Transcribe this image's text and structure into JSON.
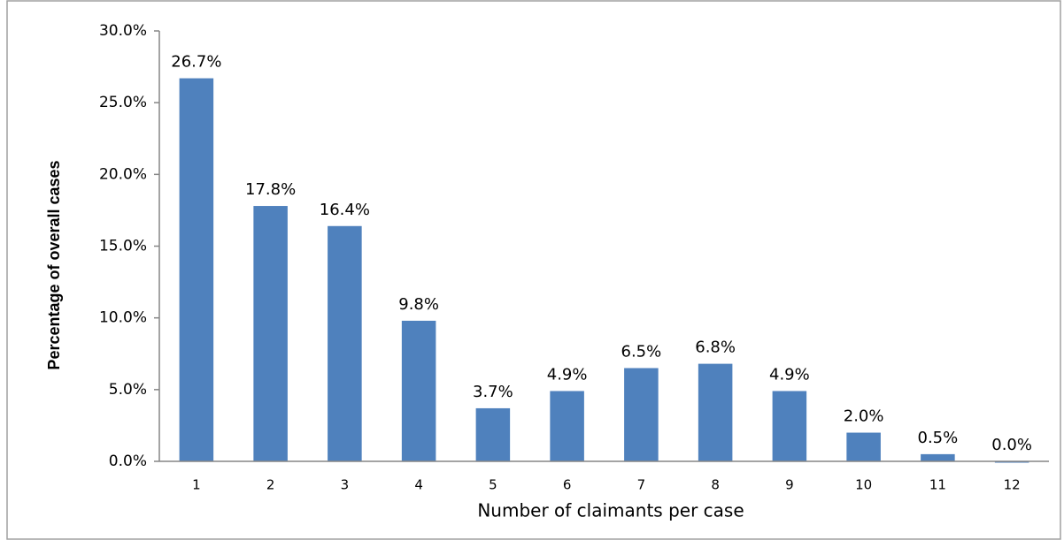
{
  "chart_data": {
    "type": "bar",
    "xlabel": "Number of claimants per case",
    "ylabel": "Percentage of overall cases",
    "categories": [
      "1",
      "2",
      "3",
      "4",
      "5",
      "6",
      "7",
      "8",
      "9",
      "10",
      "11",
      "12"
    ],
    "values": [
      26.7,
      17.8,
      16.4,
      9.8,
      3.7,
      4.9,
      6.5,
      6.8,
      4.9,
      2.0,
      0.5,
      0.0
    ],
    "value_labels": [
      "26.7%",
      "17.8%",
      "16.4%",
      "9.8%",
      "3.7%",
      "4.9%",
      "6.5%",
      "6.8%",
      "4.9%",
      "2.0%",
      "0.5%",
      "0.0%"
    ],
    "color": "#4f81bd",
    "ylim": [
      0,
      30
    ],
    "yticks": [
      {
        "value": 0,
        "label": "0.0%"
      },
      {
        "value": 5,
        "label": "5.0%"
      },
      {
        "value": 10,
        "label": "10.0%"
      },
      {
        "value": 15,
        "label": "15.0%"
      },
      {
        "value": 20,
        "label": "20.0%"
      },
      {
        "value": 25,
        "label": "25.0%"
      },
      {
        "value": 30,
        "label": "30.0%"
      }
    ],
    "grid": false
  }
}
